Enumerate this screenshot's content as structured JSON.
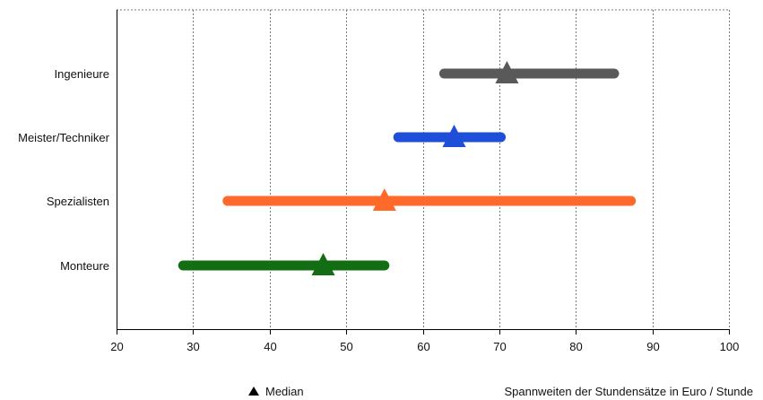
{
  "chart_data": {
    "type": "range",
    "categories": [
      "Ingenieure",
      "Meister/Techniker",
      "Spezialisten",
      "Monteure"
    ],
    "series": [
      {
        "category": "Ingenieure",
        "min": 62.8,
        "max": 85.0,
        "median": 71.0,
        "color": "#595959"
      },
      {
        "category": "Meister/Techniker",
        "min": 56.8,
        "max": 70.2,
        "median": 64.1,
        "color": "#1f4fd8"
      },
      {
        "category": "Spezialisten",
        "min": 34.5,
        "max": 87.2,
        "median": 55.0,
        "color": "#ff6a2a"
      },
      {
        "category": "Monteure",
        "min": 28.7,
        "max": 55.0,
        "median": 47.0,
        "color": "#136e13"
      }
    ],
    "x_ticks": [
      "20",
      "30",
      "40",
      "50",
      "60",
      "70",
      "80",
      "90",
      "100"
    ],
    "xlim": [
      20,
      100
    ],
    "grid": true,
    "legend": {
      "label": "Median",
      "marker": "triangle",
      "placement": "bottom-left"
    },
    "xlabel": "Spannweiten der Stundensätze in Euro / Stunde"
  }
}
